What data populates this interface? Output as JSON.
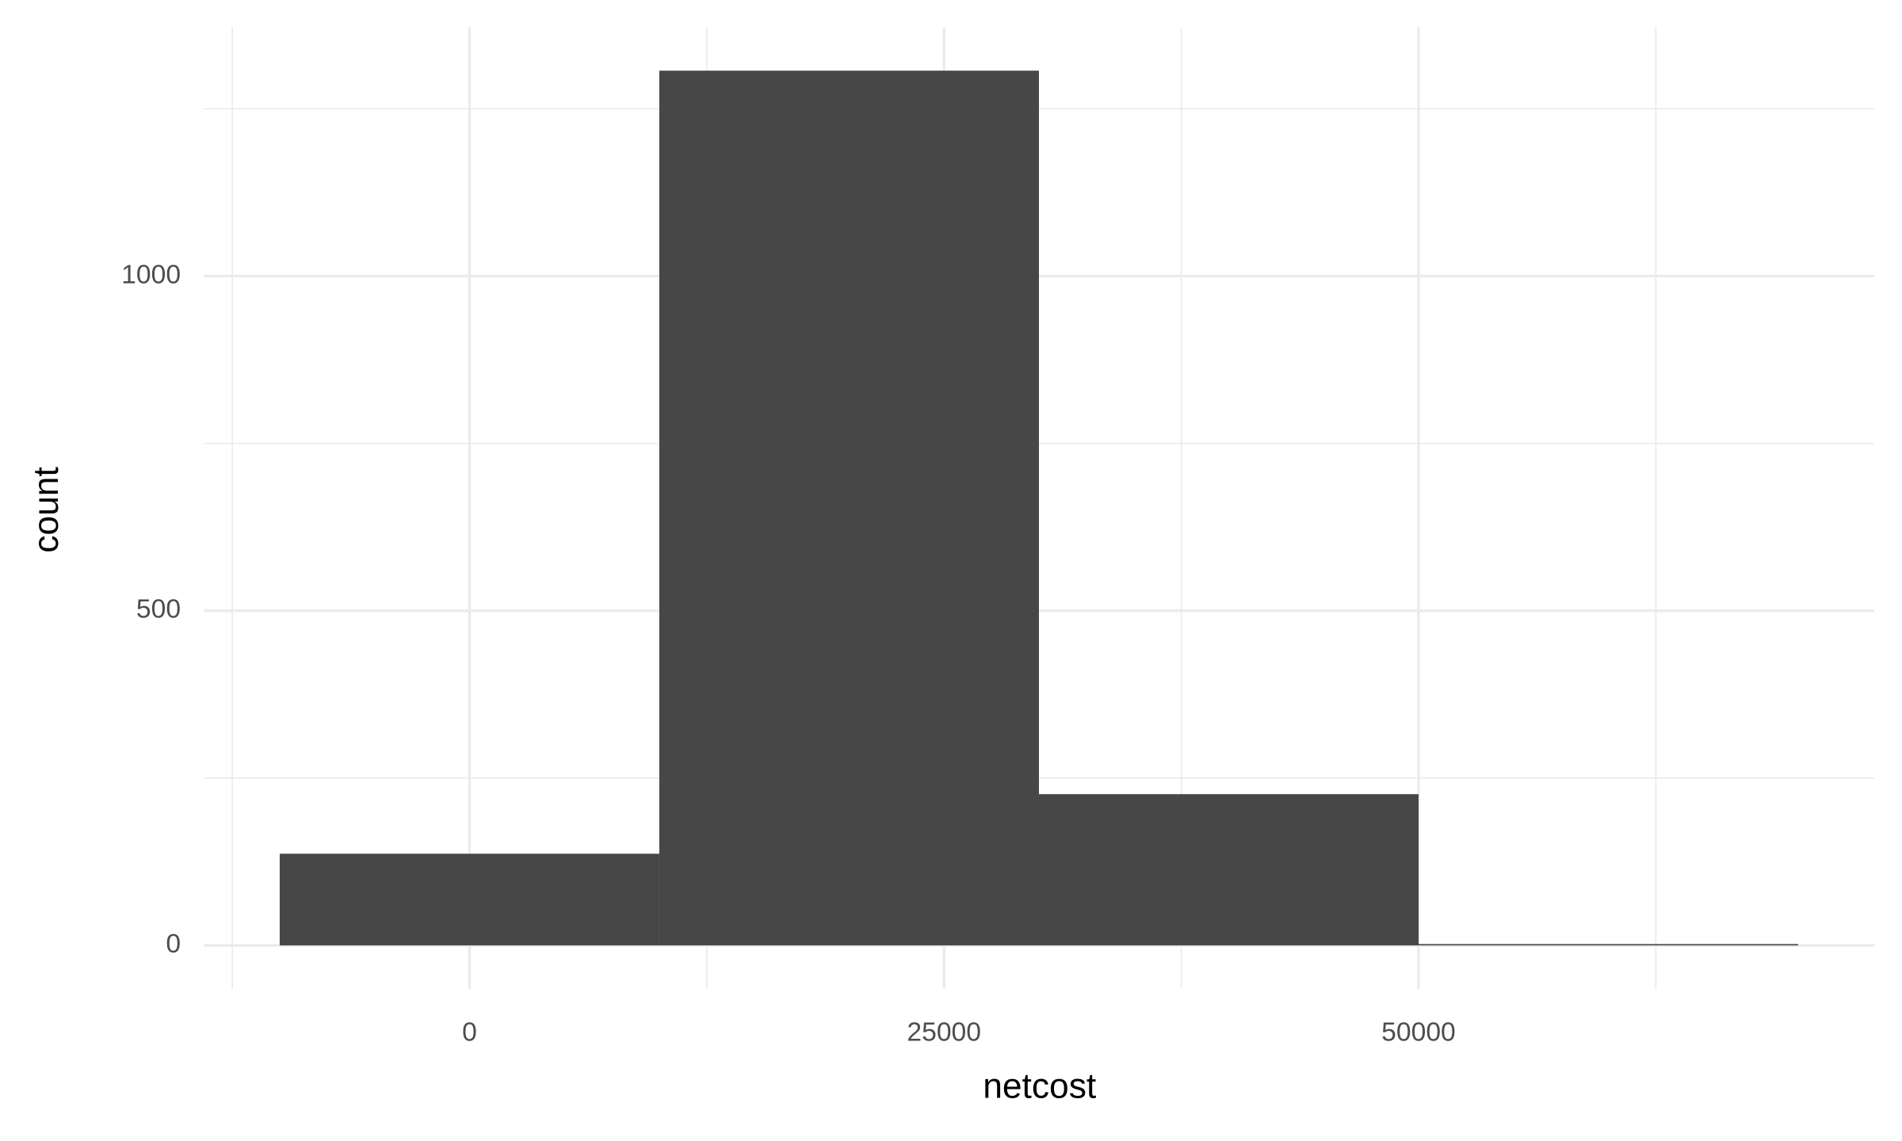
{
  "chart_data": {
    "type": "histogram",
    "x_label": "netcost",
    "y_label": "count",
    "bins": [
      -10000,
      10000,
      30000,
      50000,
      70000
    ],
    "values": [
      137,
      1307,
      226,
      2
    ],
    "color": "#474747",
    "xlim": [
      -14000,
      74000
    ],
    "ylim": [
      -65,
      1372
    ],
    "xticks": [
      0,
      25000,
      50000
    ],
    "yticks": [
      0,
      500,
      1000
    ],
    "x_minor_ticks": [
      -12500,
      12500,
      37500,
      62500
    ],
    "y_minor_ticks": [
      250,
      750,
      1250
    ],
    "grid": true
  }
}
